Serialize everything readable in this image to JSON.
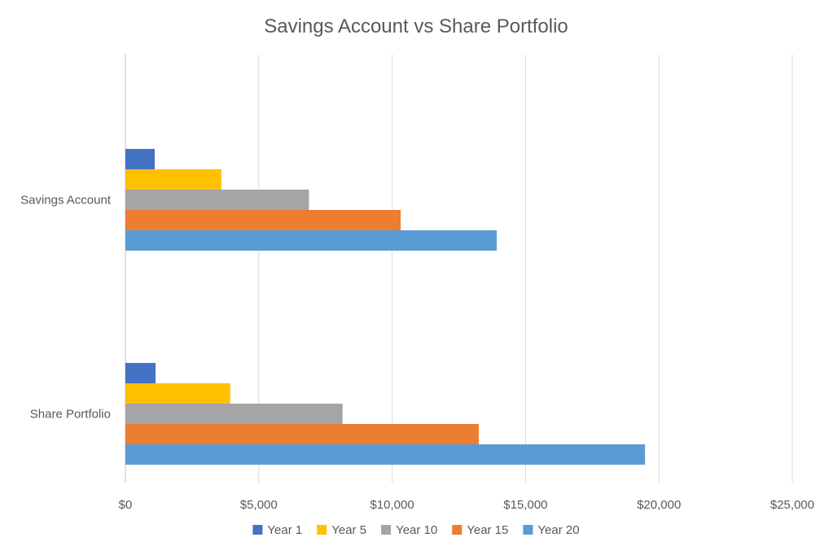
{
  "chart_data": {
    "type": "bar",
    "orientation": "horizontal",
    "title": "Savings Account vs Share Portfolio",
    "categories": [
      "Savings Account",
      "Share Portfolio"
    ],
    "series": [
      {
        "name": "Year 1",
        "color": "#4472C4",
        "values": [
          1100,
          1130
        ]
      },
      {
        "name": "Year 5",
        "color": "#FFC000",
        "values": [
          3600,
          3930
        ]
      },
      {
        "name": "Year 10",
        "color": "#A5A5A5",
        "values": [
          6880,
          8140
        ]
      },
      {
        "name": "Year 15",
        "color": "#ED7D31",
        "values": [
          10320,
          13250
        ]
      },
      {
        "name": "Year 20",
        "color": "#5B9BD5",
        "values": [
          13920,
          19480
        ]
      }
    ],
    "xlim": [
      0,
      25000
    ],
    "x_ticks": [
      0,
      5000,
      10000,
      15000,
      20000,
      25000
    ],
    "x_tick_labels": [
      "$0",
      "$5,000",
      "$10,000",
      "$15,000",
      "$20,000",
      "$25,000"
    ],
    "grid": true,
    "legend_position": "bottom",
    "xlabel": "",
    "ylabel": ""
  }
}
